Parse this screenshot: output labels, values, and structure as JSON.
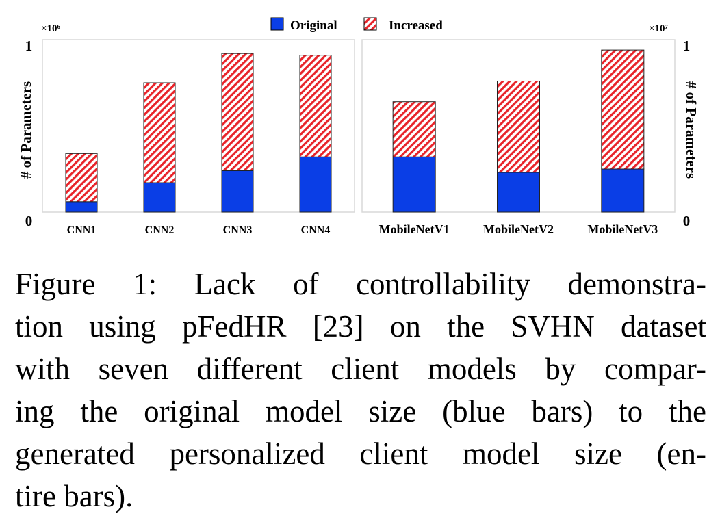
{
  "legend": {
    "original": "Original",
    "increased": "Increased"
  },
  "colors": {
    "original": "#0a3ee6",
    "increased": "#e8242a",
    "frame": "#d9d9d9"
  },
  "chart_data": [
    {
      "type": "bar",
      "stacked": true,
      "categories": [
        "CNN1",
        "CNN2",
        "CNN3",
        "CNN4"
      ],
      "series": [
        {
          "name": "Original",
          "values": [
            0.06,
            0.17,
            0.24,
            0.32
          ]
        },
        {
          "name": "Increased",
          "values": [
            0.28,
            0.58,
            0.68,
            0.59
          ]
        }
      ],
      "ylabel": "# of Parameters",
      "ylim": [
        0,
        1
      ],
      "yticks": [
        "0",
        "1"
      ],
      "scale_label": "×10⁶",
      "y_axis_side": "left"
    },
    {
      "type": "bar",
      "stacked": true,
      "categories": [
        "MobileNetV1",
        "MobileNetV2",
        "MobileNetV3"
      ],
      "series": [
        {
          "name": "Original",
          "values": [
            0.32,
            0.23,
            0.25
          ]
        },
        {
          "name": "Increased",
          "values": [
            0.32,
            0.53,
            0.69
          ]
        }
      ],
      "ylabel": "# of Parameters",
      "ylim": [
        0,
        1
      ],
      "yticks": [
        "0",
        "1"
      ],
      "scale_label": "×10⁷",
      "y_axis_side": "right"
    }
  ],
  "caption": {
    "lines": [
      "Figure 1: Lack of controllability demonstra-",
      "tion using pFedHR [23] on the SVHN dataset",
      "with seven different client models by compar-",
      "ing the original model size (blue bars) to the",
      "generated personalized client model size (en-",
      "tire bars)."
    ]
  }
}
